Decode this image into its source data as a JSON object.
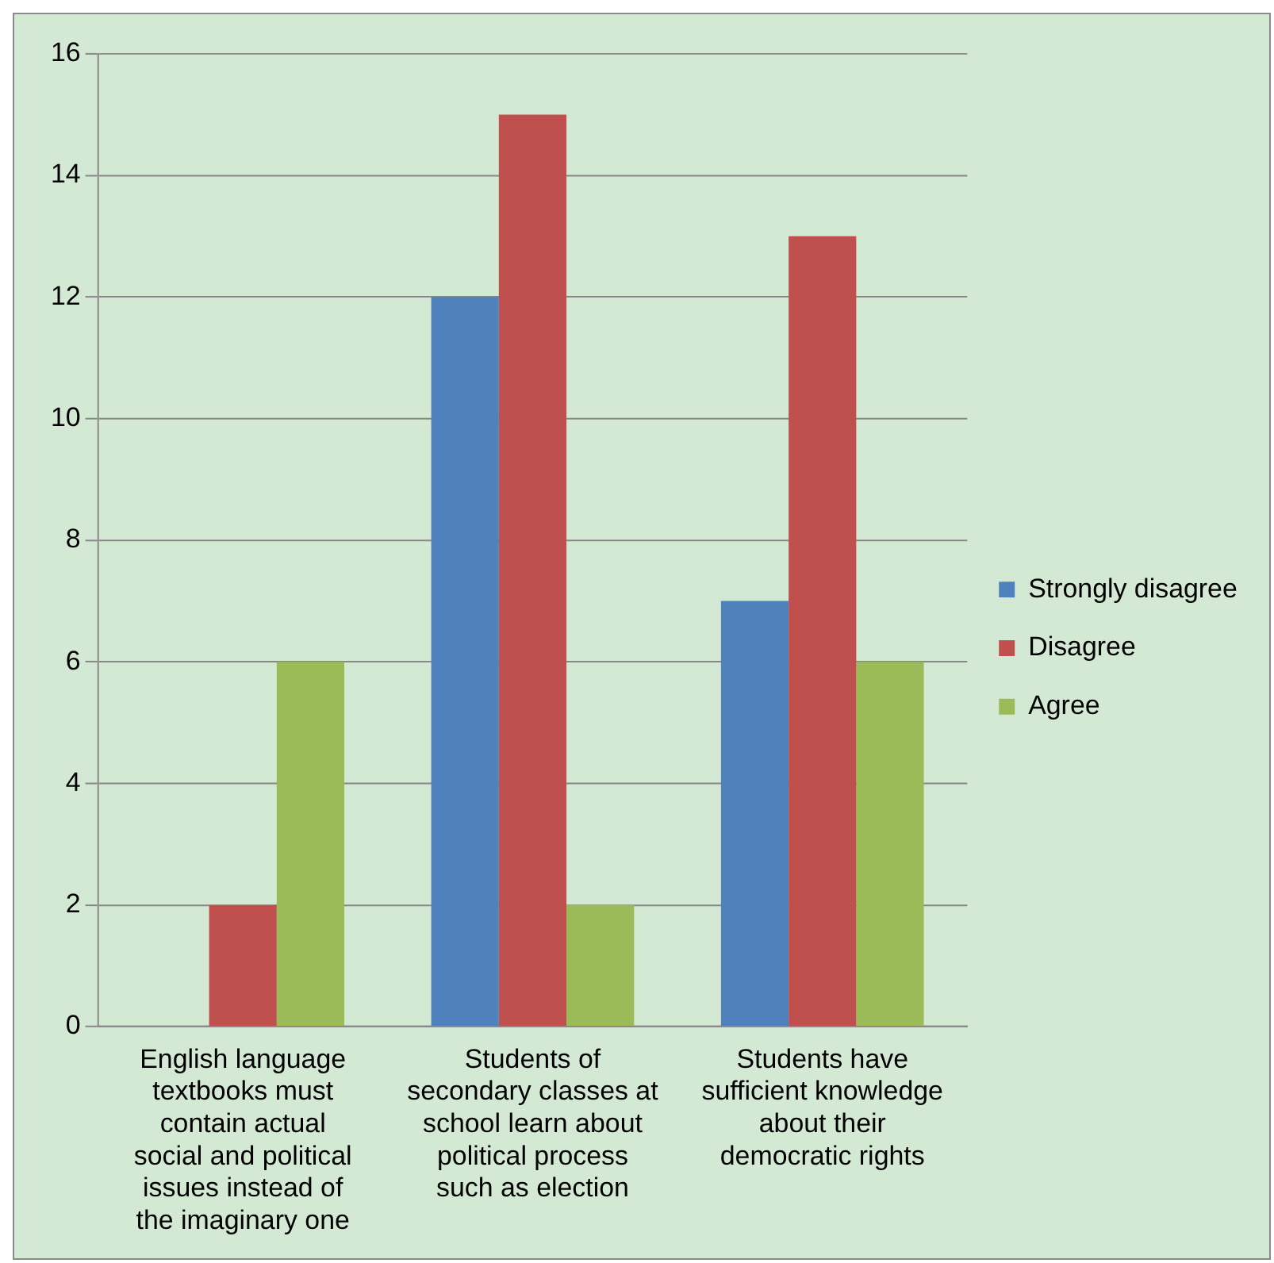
{
  "chart_data": {
    "type": "bar",
    "categories": [
      "English language textbooks must contain actual social and political issues instead of the imaginary one",
      "Students of secondary classes at school learn about political process such as election",
      "Students have sufficient knowledge about their democratic rights"
    ],
    "series": [
      {
        "name": "Strongly disagree",
        "color": "#4f81bd",
        "values": [
          0,
          12,
          7
        ]
      },
      {
        "name": "Disagree",
        "color": "#c0504d",
        "values": [
          2,
          15,
          13
        ]
      },
      {
        "name": "Agree",
        "color": "#9bbb59",
        "values": [
          6,
          2,
          6
        ]
      }
    ],
    "ylim": [
      0,
      16
    ],
    "yticks": [
      0,
      2,
      4,
      6,
      8,
      10,
      12,
      14,
      16
    ],
    "grid": "y",
    "legend": "right"
  }
}
